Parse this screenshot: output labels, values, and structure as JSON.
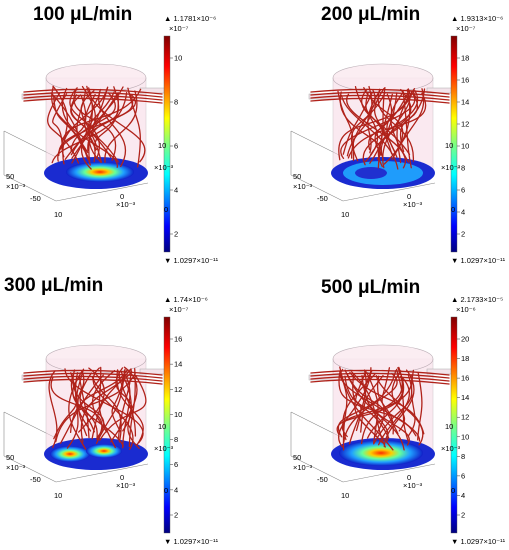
{
  "panels": [
    {
      "title": "100 μL/min",
      "cb_max": "▲ 1.1781×10⁻⁶",
      "cb_exp": "×10⁻⁷",
      "cb_min": "▼ 1.0297×10⁻¹¹",
      "cb_ticks": [
        "10",
        "8",
        "6",
        "4",
        "2"
      ],
      "side_ticks": [
        "10",
        "×10⁻³",
        "0"
      ],
      "axis_labels": [
        "50",
        "×10⁻³",
        "-50",
        "10",
        "0",
        "×10⁻³"
      ],
      "hotspot": "center"
    },
    {
      "title": "200 μL/min",
      "cb_max": "▲ 1.9313×10⁻⁶",
      "cb_exp": "×10⁻⁷",
      "cb_min": "▼ 1.0297×10⁻¹¹",
      "cb_ticks": [
        "18",
        "16",
        "14",
        "12",
        "10",
        "8",
        "6",
        "4",
        "2"
      ],
      "side_ticks": [
        "10",
        "×10⁻³",
        "0"
      ],
      "axis_labels": [
        "50",
        "×10⁻³",
        "-50",
        "10",
        "0",
        "×10⁻³"
      ],
      "hotspot": "ring"
    },
    {
      "title": "300 μL/min",
      "cb_max": "▲ 1.74×10⁻⁶",
      "cb_exp": "×10⁻⁷",
      "cb_min": "▼ 1.0297×10⁻¹¹",
      "cb_ticks": [
        "16",
        "14",
        "12",
        "10",
        "8",
        "6",
        "4",
        "2"
      ],
      "side_ticks": [
        "10",
        "×10⁻³",
        "0"
      ],
      "axis_labels": [
        "50",
        "×10⁻³",
        "-50",
        "10",
        "0",
        "×10⁻³"
      ],
      "hotspot": "double"
    },
    {
      "title": "500 μL/min",
      "cb_max": "▲ 2.1733×10⁻⁵",
      "cb_exp": "×10⁻⁶",
      "cb_min": "▼ 1.0297×10⁻¹¹",
      "cb_ticks": [
        "20",
        "18",
        "16",
        "14",
        "12",
        "10",
        "8",
        "6",
        "4",
        "2"
      ],
      "side_ticks": [
        "10",
        "×10⁻³",
        "0"
      ],
      "axis_labels": [
        "50",
        "×10⁻³",
        "-50",
        "10",
        "0",
        "×10⁻³"
      ],
      "hotspot": "wide"
    }
  ],
  "colors": {
    "streamline": "#b0221a",
    "cylinder_fill": "#f6d8e4",
    "axis": "#888888"
  }
}
